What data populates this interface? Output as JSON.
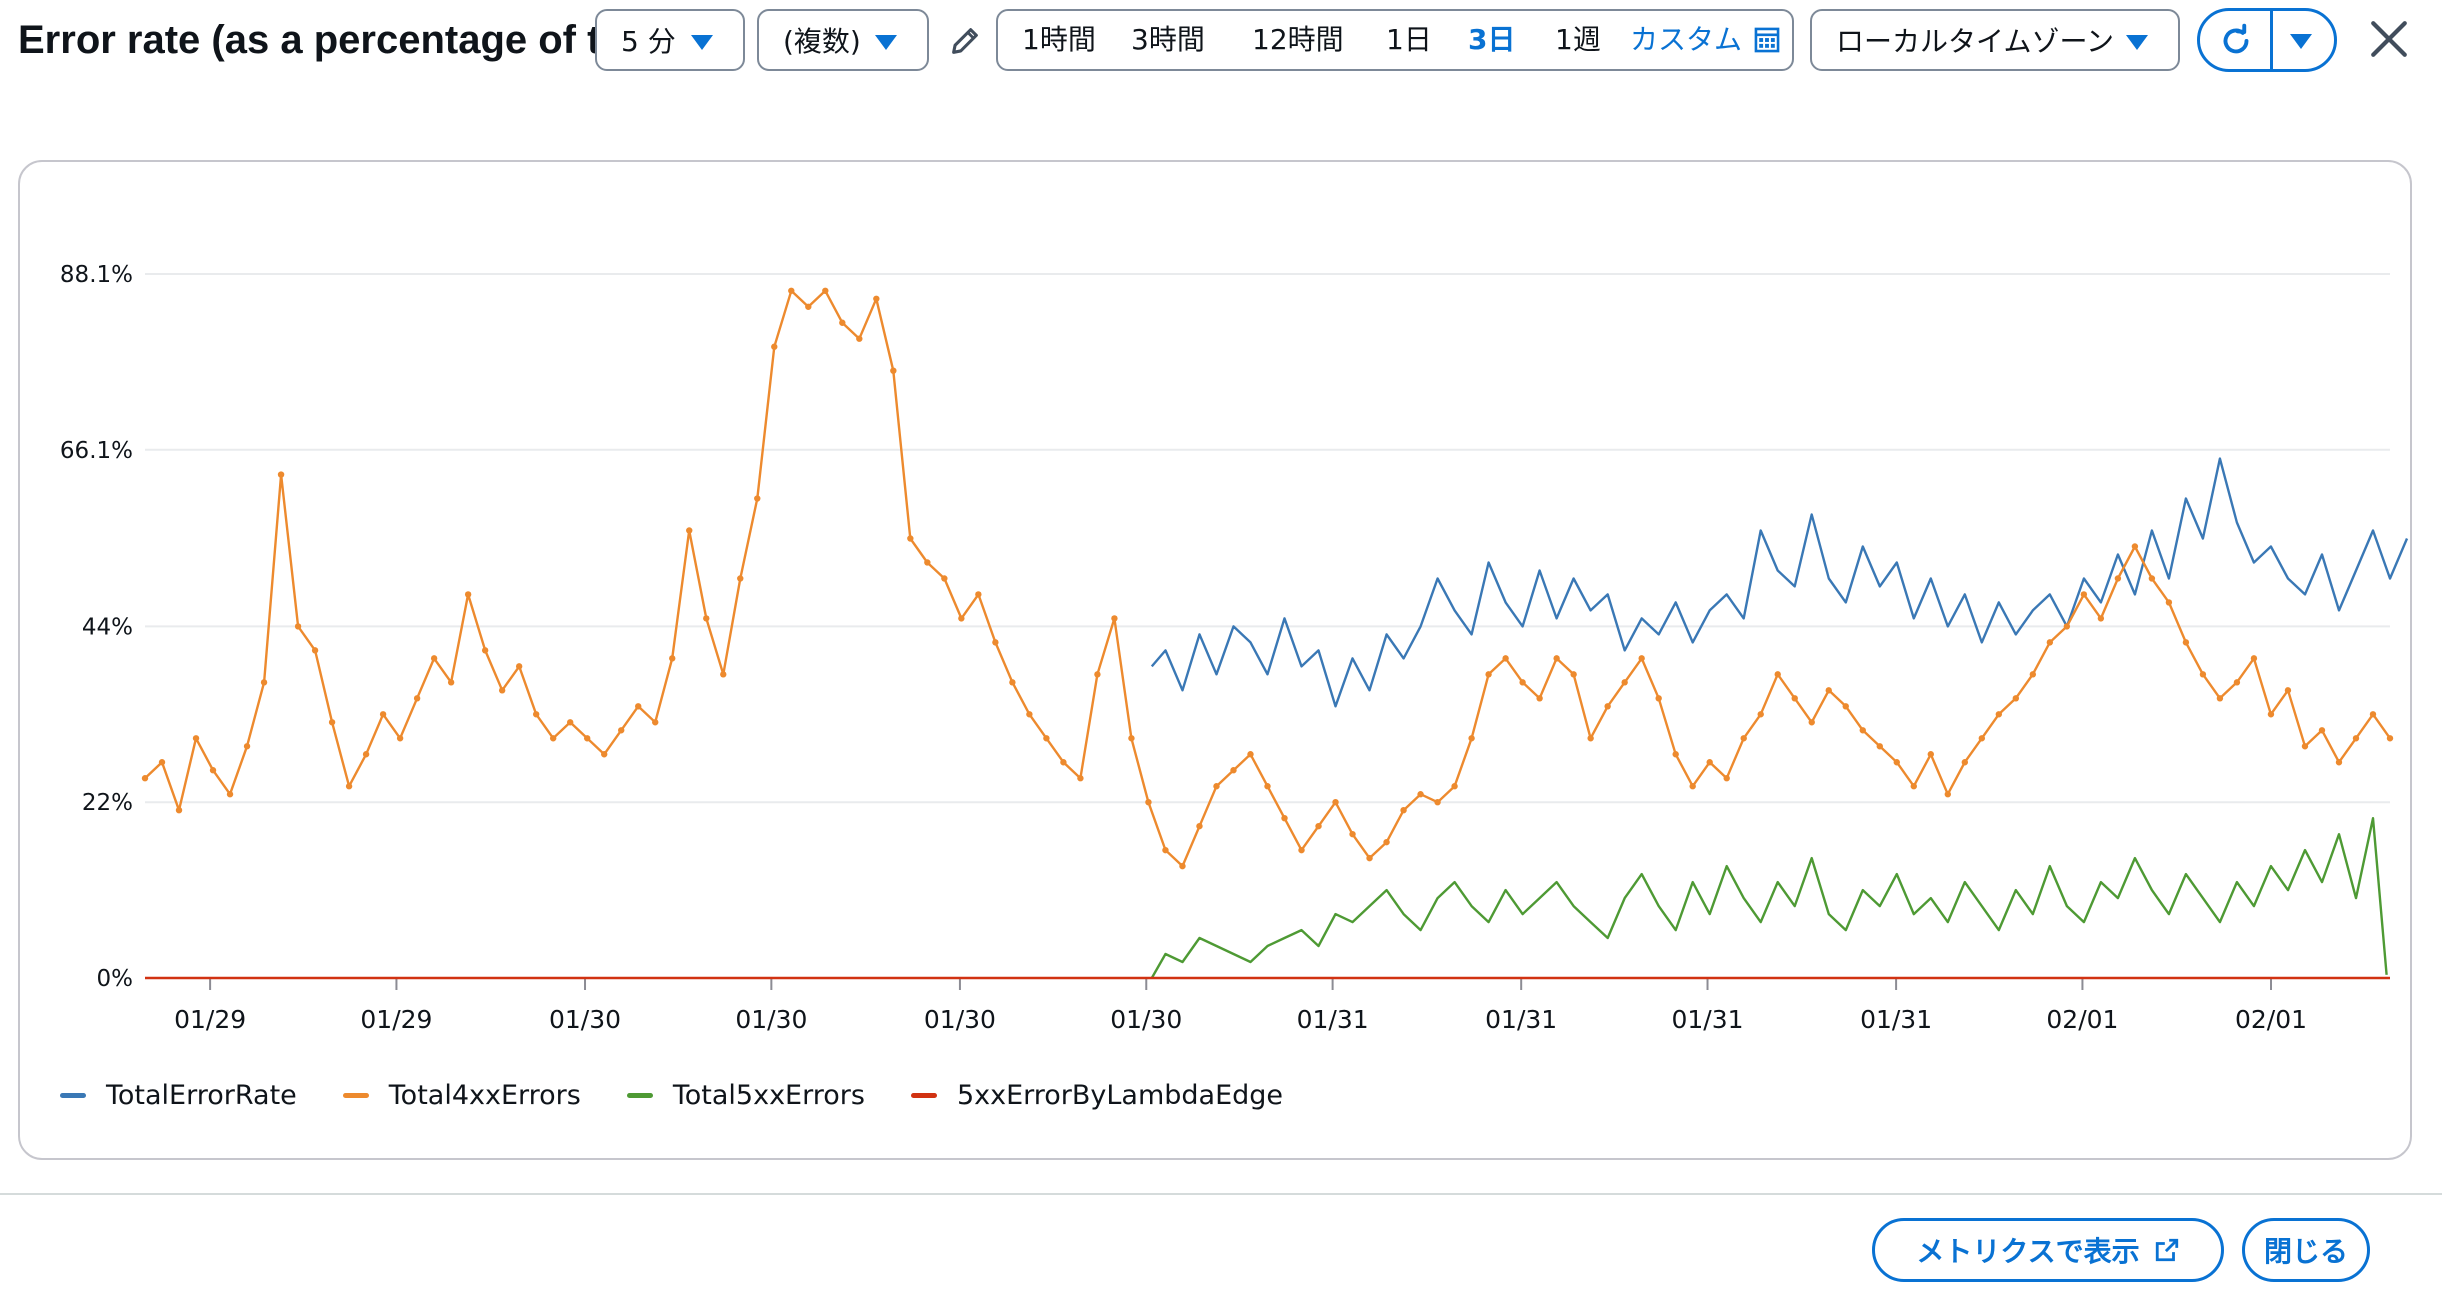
{
  "header": {
    "title": "Error rate (as a percentage of total requests)",
    "period": "5 分",
    "statistic": "(複数)",
    "time_range": {
      "options": [
        "1時間",
        "3時間",
        "12時間",
        "1日",
        "3日",
        "1週"
      ],
      "selected": "3日",
      "custom": "カスタム"
    },
    "timezone": "ローカルタイムゾーン"
  },
  "chart_data": {
    "type": "line",
    "x_tick_labels": [
      "01/29",
      "01/29",
      "01/30",
      "01/30",
      "01/30",
      "01/30",
      "01/31",
      "01/31",
      "01/31",
      "01/31",
      "02/01",
      "02/01"
    ],
    "y_tick_labels": [
      "0%",
      "22%",
      "44%",
      "66.1%",
      "88.1%"
    ],
    "ylim": [
      0,
      88.1
    ],
    "y_unit": "%",
    "grid": "horizontal",
    "legend_position": "bottom-left",
    "x_start": 0,
    "x_end": 100,
    "x_tick_positions": [
      2.9,
      11.2,
      19.6,
      27.9,
      36.3,
      44.6,
      52.9,
      61.3,
      69.6,
      78.0,
      86.3,
      94.7
    ],
    "series": [
      {
        "name": "TotalErrorRate",
        "color": "#3a78b5",
        "points": [
          [
            59.2,
            39
          ],
          [
            60,
            41
          ],
          [
            61,
            36
          ],
          [
            62,
            43
          ],
          [
            63,
            38
          ],
          [
            64,
            44
          ],
          [
            65,
            42
          ],
          [
            66,
            38
          ],
          [
            67,
            45
          ],
          [
            68,
            39
          ],
          [
            69,
            41
          ],
          [
            70,
            34
          ],
          [
            71,
            40
          ],
          [
            72,
            36
          ],
          [
            73,
            43
          ],
          [
            74,
            40
          ],
          [
            75,
            44
          ],
          [
            76,
            50
          ],
          [
            77,
            46
          ],
          [
            78,
            43
          ],
          [
            79,
            52
          ],
          [
            80,
            47
          ],
          [
            81,
            44
          ],
          [
            82,
            51
          ],
          [
            83,
            45
          ],
          [
            84,
            50
          ],
          [
            85,
            46
          ],
          [
            86,
            48
          ],
          [
            87,
            41
          ],
          [
            88,
            45
          ],
          [
            89,
            43
          ],
          [
            90,
            47
          ],
          [
            91,
            42
          ],
          [
            92,
            46
          ],
          [
            93,
            48
          ],
          [
            94,
            45
          ],
          [
            95,
            56
          ],
          [
            96,
            51
          ],
          [
            97,
            49
          ],
          [
            98,
            58
          ],
          [
            99,
            50
          ],
          [
            100,
            47
          ],
          [
            101,
            54
          ],
          [
            102,
            49
          ],
          [
            103,
            52
          ],
          [
            104,
            45
          ],
          [
            105,
            50
          ],
          [
            106,
            44
          ],
          [
            107,
            48
          ],
          [
            108,
            42
          ],
          [
            109,
            47
          ],
          [
            110,
            43
          ],
          [
            111,
            46
          ],
          [
            112,
            48
          ],
          [
            113,
            44
          ],
          [
            114,
            50
          ],
          [
            115,
            47
          ],
          [
            116,
            53
          ],
          [
            117,
            48
          ],
          [
            118,
            56
          ],
          [
            119,
            50
          ],
          [
            120,
            60
          ],
          [
            121,
            55
          ],
          [
            122,
            65
          ],
          [
            123,
            57
          ],
          [
            124,
            52
          ],
          [
            125,
            54
          ],
          [
            126,
            50
          ],
          [
            127,
            48
          ],
          [
            128,
            53
          ],
          [
            129,
            46
          ],
          [
            130,
            51
          ],
          [
            131,
            56
          ],
          [
            132,
            50
          ],
          [
            133,
            55
          ]
        ]
      },
      {
        "name": "Total4xxErrors",
        "color": "#ed8a2e",
        "points": [
          [
            0,
            25
          ],
          [
            1,
            27
          ],
          [
            2,
            21
          ],
          [
            3,
            30
          ],
          [
            4,
            26
          ],
          [
            5,
            23
          ],
          [
            6,
            29
          ],
          [
            7,
            37
          ],
          [
            8,
            63
          ],
          [
            9,
            44
          ],
          [
            10,
            41
          ],
          [
            11,
            32
          ],
          [
            12,
            24
          ],
          [
            13,
            28
          ],
          [
            14,
            33
          ],
          [
            15,
            30
          ],
          [
            16,
            35
          ],
          [
            17,
            40
          ],
          [
            18,
            37
          ],
          [
            19,
            48
          ],
          [
            20,
            41
          ],
          [
            21,
            36
          ],
          [
            22,
            39
          ],
          [
            23,
            33
          ],
          [
            24,
            30
          ],
          [
            25,
            32
          ],
          [
            26,
            30
          ],
          [
            27,
            28
          ],
          [
            28,
            31
          ],
          [
            29,
            34
          ],
          [
            30,
            32
          ],
          [
            31,
            40
          ],
          [
            32,
            56
          ],
          [
            33,
            45
          ],
          [
            34,
            38
          ],
          [
            35,
            50
          ],
          [
            36,
            60
          ],
          [
            37,
            79
          ],
          [
            38,
            86
          ],
          [
            39,
            84
          ],
          [
            40,
            86
          ],
          [
            41,
            82
          ],
          [
            42,
            80
          ],
          [
            43,
            85
          ],
          [
            44,
            76
          ],
          [
            45,
            55
          ],
          [
            46,
            52
          ],
          [
            47,
            50
          ],
          [
            48,
            45
          ],
          [
            49,
            48
          ],
          [
            50,
            42
          ],
          [
            51,
            37
          ],
          [
            52,
            33
          ],
          [
            53,
            30
          ],
          [
            54,
            27
          ],
          [
            55,
            25
          ],
          [
            56,
            38
          ],
          [
            57,
            45
          ],
          [
            58,
            30
          ],
          [
            59,
            22
          ],
          [
            60,
            16
          ],
          [
            61,
            14
          ],
          [
            62,
            19
          ],
          [
            63,
            24
          ],
          [
            64,
            26
          ],
          [
            65,
            28
          ],
          [
            66,
            24
          ],
          [
            67,
            20
          ],
          [
            68,
            16
          ],
          [
            69,
            19
          ],
          [
            70,
            22
          ],
          [
            71,
            18
          ],
          [
            72,
            15
          ],
          [
            73,
            17
          ],
          [
            74,
            21
          ],
          [
            75,
            23
          ],
          [
            76,
            22
          ],
          [
            77,
            24
          ],
          [
            78,
            30
          ],
          [
            79,
            38
          ],
          [
            80,
            40
          ],
          [
            81,
            37
          ],
          [
            82,
            35
          ],
          [
            83,
            40
          ],
          [
            84,
            38
          ],
          [
            85,
            30
          ],
          [
            86,
            34
          ],
          [
            87,
            37
          ],
          [
            88,
            40
          ],
          [
            89,
            35
          ],
          [
            90,
            28
          ],
          [
            91,
            24
          ],
          [
            92,
            27
          ],
          [
            93,
            25
          ],
          [
            94,
            30
          ],
          [
            95,
            33
          ],
          [
            96,
            38
          ],
          [
            97,
            35
          ],
          [
            98,
            32
          ],
          [
            99,
            36
          ],
          [
            100,
            34
          ],
          [
            101,
            31
          ],
          [
            102,
            29
          ],
          [
            103,
            27
          ],
          [
            104,
            24
          ],
          [
            105,
            28
          ],
          [
            106,
            23
          ],
          [
            107,
            27
          ],
          [
            108,
            30
          ],
          [
            109,
            33
          ],
          [
            110,
            35
          ],
          [
            111,
            38
          ],
          [
            112,
            42
          ],
          [
            113,
            44
          ],
          [
            114,
            48
          ],
          [
            115,
            45
          ],
          [
            116,
            50
          ],
          [
            117,
            54
          ],
          [
            118,
            50
          ],
          [
            119,
            47
          ],
          [
            120,
            42
          ],
          [
            121,
            38
          ],
          [
            122,
            35
          ],
          [
            123,
            37
          ],
          [
            124,
            40
          ],
          [
            125,
            33
          ],
          [
            126,
            36
          ],
          [
            127,
            29
          ],
          [
            128,
            31
          ],
          [
            129,
            27
          ],
          [
            130,
            30
          ],
          [
            131,
            33
          ],
          [
            132,
            30
          ]
        ]
      },
      {
        "name": "Total5xxErrors",
        "color": "#4e9a34",
        "points": [
          [
            59.2,
            0
          ],
          [
            60,
            3
          ],
          [
            61,
            2
          ],
          [
            62,
            5
          ],
          [
            63,
            4
          ],
          [
            64,
            3
          ],
          [
            65,
            2
          ],
          [
            66,
            4
          ],
          [
            67,
            5
          ],
          [
            68,
            6
          ],
          [
            69,
            4
          ],
          [
            70,
            8
          ],
          [
            71,
            7
          ],
          [
            72,
            9
          ],
          [
            73,
            11
          ],
          [
            74,
            8
          ],
          [
            75,
            6
          ],
          [
            76,
            10
          ],
          [
            77,
            12
          ],
          [
            78,
            9
          ],
          [
            79,
            7
          ],
          [
            80,
            11
          ],
          [
            81,
            8
          ],
          [
            82,
            10
          ],
          [
            83,
            12
          ],
          [
            84,
            9
          ],
          [
            85,
            7
          ],
          [
            86,
            5
          ],
          [
            87,
            10
          ],
          [
            88,
            13
          ],
          [
            89,
            9
          ],
          [
            90,
            6
          ],
          [
            91,
            12
          ],
          [
            92,
            8
          ],
          [
            93,
            14
          ],
          [
            94,
            10
          ],
          [
            95,
            7
          ],
          [
            96,
            12
          ],
          [
            97,
            9
          ],
          [
            98,
            15
          ],
          [
            99,
            8
          ],
          [
            100,
            6
          ],
          [
            101,
            11
          ],
          [
            102,
            9
          ],
          [
            103,
            13
          ],
          [
            104,
            8
          ],
          [
            105,
            10
          ],
          [
            106,
            7
          ],
          [
            107,
            12
          ],
          [
            108,
            9
          ],
          [
            109,
            6
          ],
          [
            110,
            11
          ],
          [
            111,
            8
          ],
          [
            112,
            14
          ],
          [
            113,
            9
          ],
          [
            114,
            7
          ],
          [
            115,
            12
          ],
          [
            116,
            10
          ],
          [
            117,
            15
          ],
          [
            118,
            11
          ],
          [
            119,
            8
          ],
          [
            120,
            13
          ],
          [
            121,
            10
          ],
          [
            122,
            7
          ],
          [
            123,
            12
          ],
          [
            124,
            9
          ],
          [
            125,
            14
          ],
          [
            126,
            11
          ],
          [
            127,
            16
          ],
          [
            128,
            12
          ],
          [
            129,
            18
          ],
          [
            130,
            10
          ],
          [
            131,
            20
          ],
          [
            131.8,
            0.4
          ]
        ]
      },
      {
        "name": "5xxErrorByLambdaEdge",
        "color": "#d13212",
        "points": [
          [
            0,
            0
          ],
          [
            132,
            0
          ]
        ]
      }
    ]
  },
  "footer": {
    "view_in_metrics": "メトリクスで表示",
    "close": "閉じる"
  },
  "icons": {
    "edit": "pencil-icon",
    "calendar": "calendar-icon",
    "refresh": "refresh-icon",
    "close": "close-icon",
    "external": "external-link-icon"
  }
}
